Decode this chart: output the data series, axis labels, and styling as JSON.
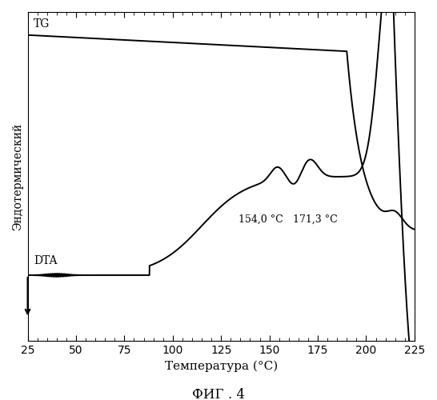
{
  "xlabel": "Температура (°С)",
  "ylabel": "Эндотермический",
  "fig_caption": "ФИГ . 4",
  "xlim": [
    25,
    225
  ],
  "xticks": [
    25,
    50,
    75,
    100,
    125,
    150,
    175,
    200,
    225
  ],
  "annotation1": "154,0 °C",
  "annotation2": "171,3 °C",
  "label_TG": "TG",
  "label_DTA": "DTA",
  "bg_color": "#ffffff",
  "line_color": "#000000"
}
